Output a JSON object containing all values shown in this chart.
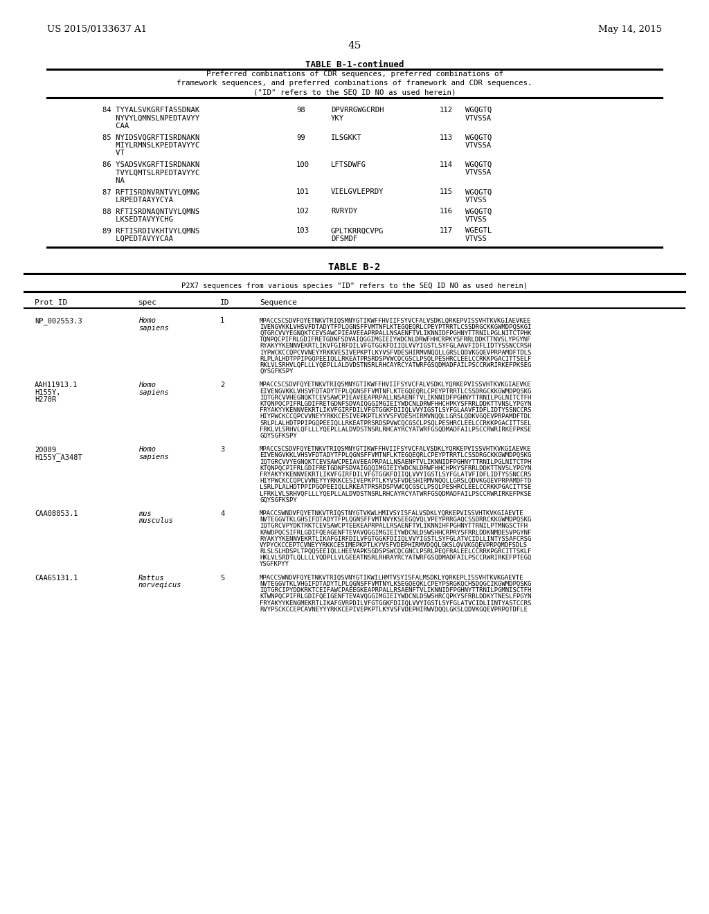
{
  "bg_color": "#ffffff",
  "header_left": "US 2015/0133637 A1",
  "header_right": "May 14, 2015",
  "page_number": "45",
  "table_b1_title": "TABLE B-1-continued",
  "table_b1_caption_lines": [
    "Preferred combinations of CDR sequences, preferred combinations of",
    "framework sequences, and preferred combinations of framework and CDR sequences.",
    "(\"ID\" refers to the SEQ ID NO as used herein)"
  ],
  "table_b1_rows": [
    [
      "84 TYYALSVKGRFTASSDNAK\n   NYVYLQMNSLNPEDTAVYY\n   CAA",
      "98",
      "DPVRRGWGCRDH\nYKY",
      "112",
      "WGQGTQ\nVTVSSA"
    ],
    [
      "85 NYIDSVQGRFTISRDNAKN\n   MIYLRMNSLKPEDTAVYYC\n   VT",
      "99",
      "ILSGKKT",
      "113",
      "WGQGTQ\nVTVSSA"
    ],
    [
      "86 YSADSVKGRFTISRDNAKN\n   TVYLQMTSLRPEDTAVYYC\n   NA",
      "100",
      "LFTSDWFG",
      "114",
      "WGQGTQ\nVTVSSA"
    ],
    [
      "87 RFTISRDNVRNTVYLQMNG\n   LRPEDTAAYYCYA",
      "101",
      "VIELGVLEPRDY",
      "115",
      "WGQGTQ\nVTVSS"
    ],
    [
      "88 RFTISRDNAQNTVYLQMNS\n   LKSEDTAVYYCHG",
      "102",
      "RVRYDY",
      "116",
      "WGQGTQ\nVTVSS"
    ],
    [
      "89 RFTISRDIVKHTVYLQMNS\n   LQPEDTAVYYCAA",
      "103",
      "GPLTKRRQCVPG\nDFSMDF",
      "117",
      "WGEGTL\nVTVSS"
    ]
  ],
  "table_b2_title": "TABLE B-2",
  "table_b2_caption": "P2X7 sequences from various species \"ID\" refers to the SEQ ID NO as used herein)",
  "table_b2_headers": [
    "Prot ID",
    "spec",
    "ID",
    "Sequence"
  ],
  "table_b2_rows": [
    {
      "prot_id": "NP_002553.3",
      "spec": "Homo\nsapiens",
      "id": "1",
      "sequence": "MPACCSCSDVFQYETNKVTRIQSMNYGTIKWFFHVIIFSYVCFALVSDKLQRKEPVISSVHTKVKGIAEVKEE\nIVENGVKKLVHSVFDTADYTFPLQGNSFFVMTNFLKTEGQEQRLCPEYPTRRTLCSSDRGCKKGWMDPQSKGI\nQTGRCVVYEGNQKTCEVSAWCPIEAVEEAPRPALLNSAENFTVLIKNNIDFPGHNYTTRNILPGLNITCTPHK\nTQNPQCPIFRLGDIFRETGDNFSDVAIQGGIMGIEIYWDCNLDRWFHHCRPKYSFRRLDDKTTNVSLYPGYNF\nRYAKYYKENNVEKRTLIKVFGIRFDILVFGTGGKFDIIQLVVYIGSTLSYFGLAAVFIDFLIDTYSSNCCRSH\nIYPWCKCCQPCVVNEYYRKKVESIVEPKPTLKYVSFVDESHIRMVNQQLLGRSLQDVKGQEVPRPAMDFTDLS\nRLPLALHDTPPIPGQPEEIQLLRKEATPRSRDSPVWCQCGSCLPSQLPESHRCLEELCCRKKPGACITTSELF\nRKLVLSRHVLQFLLLYQEPLLALDVDSTNSRLRHCAYRCYATWRFGSQDMADFAILPSCCRWRIRKEFPKSEG\nQYSGFKSPY"
    },
    {
      "prot_id": "AAH11913.1\nH155Y,\nH270R",
      "spec": "Homo\nsapiens",
      "id": "2",
      "sequence": "MPACCSCSDVFQYETNKVTRIQSMNYGTIKWFFHVIIFSYVCFALVSDKLYQRKEPVISSVHTKVKGIAEVKE\nEIVENGVKKLVHSVFDTADYTFPLQGNSFFVMTNFLKTEGQEQRLCPEYPTRRTLCSSDRGCKKGWMDPQSKG\nIQTGRCVVHEGNQKTCEVSAWCPIEAVEEAPRPALLNSAENFTVLIKNNIDFPGHNYTTRNILPGLNITCTFH\nKTQNPQCPIFRLGDIFRETGDNFSDVAIQGGIMGIEIYWDCNLDRWFHHCHPKYSFRRLDDKTTVNSLYPGYN\nFRYAKYYKENNVEKRTLIKVFGIRFDILVFGTGGKFDIIQLVVYIGSTLSYFGLAAVFIDFLIDTYSSNCCRS\nHIYPWCKCCQPCVVNEYYRKKCESIVEPKPTLKYVSFVDESHIRMVNQQLLGRSLQDKVGQEVPRPAMDFTDL\nSRLPLALHDTPPIPGQPEEIQLLRKEATPRSRDSPVWCQCGSCLPSQLPESHRCLEELCCRKKPGACITTSEL\nFRKLVLSRHVLQFLLLYQEPLLALDVDSTNSRLRHCAYRCYATWRFGSQDMADFAILPSCCRWRIRKEFPKSE\nGQYSGFKSPY"
    },
    {
      "prot_id": "20089_\nH155Y_A348T",
      "spec": "Homo\nsapiens",
      "id": "3",
      "sequence": "MPACCSCSDVFQYETNKVTRIQSMNYGTIKWFFHVIIFSYVCFALVSDKLYQRKEPVISSVHTKVKGIAEVKE\nEIVENGVKKLVHSVFDTADYTFPLQGNSFFVMTNFLKTEGQEQRLCPEYPTRRTLCSSDRGCKKGWMDPQSKG\nIQTGRCVVYEGNQKTCEVSAWCPEIAVEEAPRPALLNSAENFTVLIKNNIDFPGHNYTTRNILPGLNITCTPH\nKTQNPQCPIFRLGDIFRETGDNFSDVAIGQQIMGIEIYWDCNLDRWFHHCHPKYSFRRLDDKTTNVSLYPGYN\nFRYAKYYKENNVEKRTLIKVFGIRFDILVFGTGGKFDIIQLVVYIGSTLSYFGLATVFIDFLIDTYSSNCCRS\nHIYPWCKCCQPCVVNEYYYRKKCESIVEPKPTLKYVSFVDESHIRMVNQQLLGRSLQDVKGQEVPRPAMDFTD\nLSRLPLALHDTPPIPGQPEEIQLLRKEATPRSRDSPVWCQCGSCLPSQLPESHRCLEELCCRKKPGACITTSE\nLFRKLVLSRHVQFLLLYQEPLLALDVDSTNSRLRHCAYRCYATWRFGSQDMADFAILPSCCRWRIRKEFPKSE\nGQYSGFKSPY"
    },
    {
      "prot_id": "CAA08853.1",
      "spec": "mus\nmusculus",
      "id": "4",
      "sequence": "MPACCSWNDVFQYETNKVTRIQSTNYGTVKWLHMIVSYISFALVSDKLYQRKEPVISSVHTKVKGIAEVTE\nNVTEGGVTKLGHSIFDTADYTFPLQGNSFFVMTNVYKSEEGQVQLVPEYPRRGAQCSSDRRCKKGWMDPQSKG\nIQTGRCVPYDKTRKTCEVSAWCPTEEKEAPRPALLRSAENFTVLIKNNIHFPGHNYTTRNILPTMNGSCTFH\nKAWDPQCSIFRLGDIFQEAGENFTEVAVQGGIMGIEIYWDCNLDSWSHHCRPRYSFRRLDDKNMDESVPGYNF\nRYAKYYKENNVEKRTLIKAFGIRFDILVFGTGGKFDIIQLVVYIGSTLSYFGLATVCIDLLINTYSSAFCRSG\nVYPYCKCCEPTCVNEYYRKKCESIMEPKPTLKYVSFVDEPHIRMVDQQLGKSLQVVKGQEVPRPQMDFSDLS\nRLSLSLHDSPLTPQQSEEIQLLHEEVAPKSGDSPSWCQCGNCLPSRLPEQFRALEELCCRRKPGRCITTSKLF\nHKLVLSRDTLQLLLLYQDPLLVLGEEATNSRLRHRAYRCYATWRFGSQDMADFAILPSCCRWRIRKEFPTEGQ\nYSGFKPYY"
    },
    {
      "prot_id": "CAA65131.1",
      "spec": "Rattus\nnorveqicus",
      "id": "5",
      "sequence": "MPACCSWNDVFQYETNKVTRIQSVNYGTIKWILHMTVSYISFALMSDKLYQRKEPLISSVHTKVKGAEVTE\nNVTEGGVTKLVHGIFDTADYTLPLQGNSFFVMTNYLKSEGQEQKLCPEYPSRGKQCHSDQGCIKGWMDPQSKG\nIQTGRCIPYDDKRKTCEIFAWCPAEEGKEAPRPALLRSAENFTVLIKNNIDFPGHNYTTRNILPGMNISCTFH\nKTWNPQCPIFRLGDIFQEIGENFTEVAVQGGIMGIEIYWDCNLDSWSHRCQPKYSFRRLDDKYTNESLFPGYN\nFRYAKYYKENGMEKRTLIKAFGVRPDILVFGTGGKFDIIQLVVYIGSTLSYFGLATVCIDLIINTYASTCCRS\nRVYPSCKCCEPCAVNEYYYRKKCEPIVEPKPTLKYVSFVDEPHIRWVDQQLGKSLQDVKGQEVPRPQTDFLE"
    }
  ]
}
